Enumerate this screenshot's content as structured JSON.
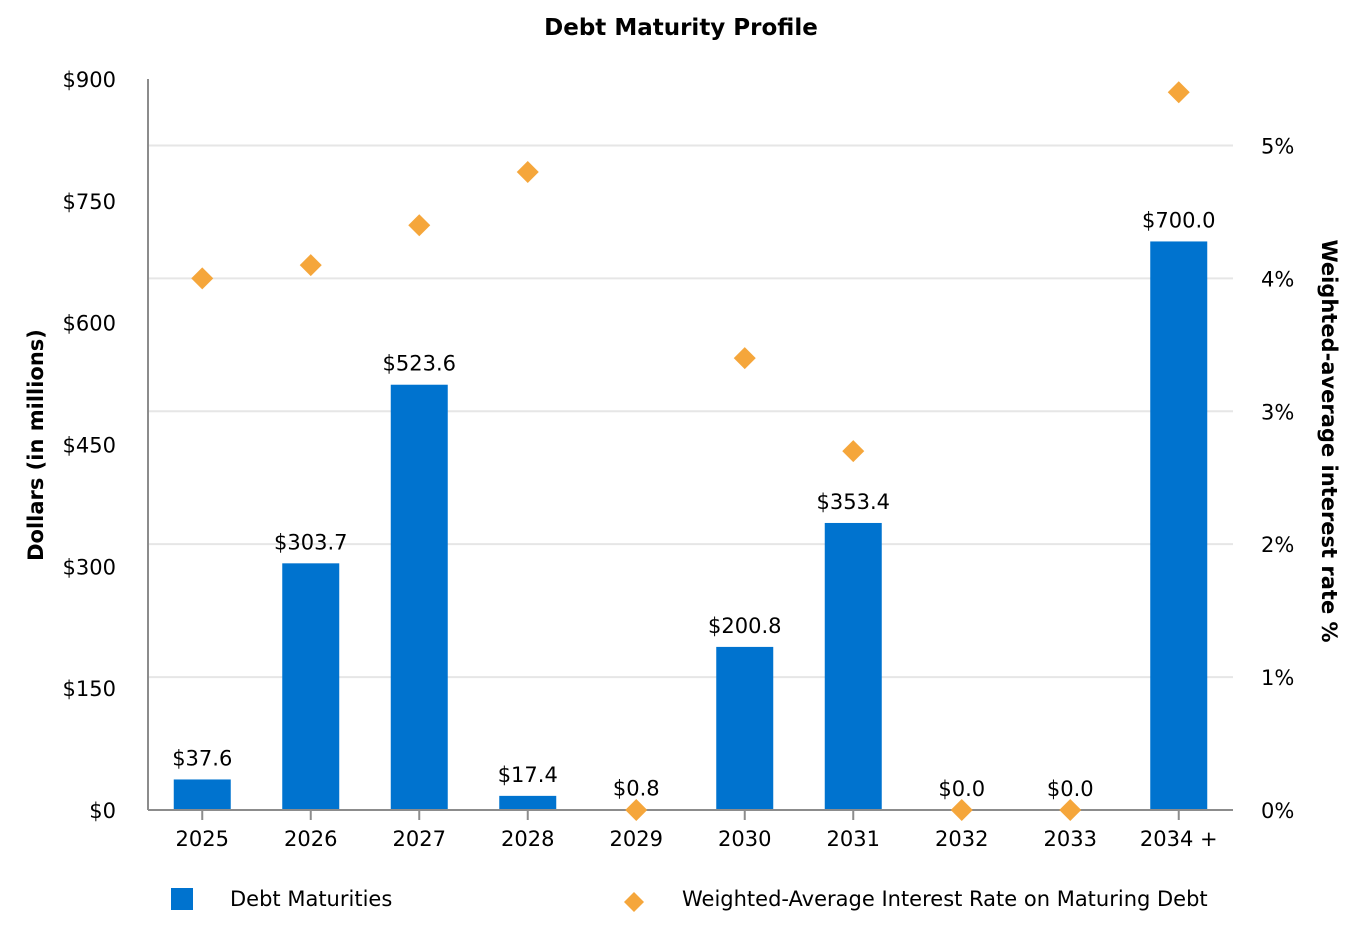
{
  "chart_data": {
    "type": "bar",
    "title": "Debt Maturity Profile",
    "categories": [
      "2025",
      "2026",
      "2027",
      "2028",
      "2029",
      "2030",
      "2031",
      "2032",
      "2033",
      "2034 +"
    ],
    "series": [
      {
        "name": "Debt Maturities",
        "type": "bar",
        "axis": "left",
        "color": "#0073cf",
        "values": [
          37.6,
          303.7,
          523.6,
          17.4,
          0.8,
          200.8,
          353.4,
          0.0,
          0.0,
          700.0
        ],
        "labels": [
          "$37.6",
          "$303.7",
          "$523.6",
          "$17.4",
          "$0.8",
          "$200.8",
          "$353.4",
          "$0.0",
          "$0.0",
          "$700.0"
        ]
      },
      {
        "name": "Weighted-Average Interest Rate on Maturing Debt",
        "type": "scatter",
        "marker": "diamond",
        "axis": "right",
        "color": "#f5a63b",
        "values": [
          4.0,
          4.1,
          4.4,
          4.8,
          0.0,
          3.4,
          2.7,
          0.0,
          0.0,
          5.4
        ]
      }
    ],
    "ylabel": "Dollars (in millions)",
    "ylim": [
      0,
      900
    ],
    "yticks": [
      0,
      150,
      300,
      450,
      600,
      750,
      900
    ],
    "ytick_labels": [
      "$0",
      "$150",
      "$300",
      "$450",
      "$600",
      "$750",
      "$900"
    ],
    "y2label": "Weighted-average interest rate %",
    "y2lim": [
      0,
      5.5
    ],
    "y2ticks": [
      0,
      1,
      2,
      3,
      4,
      5
    ],
    "y2tick_labels": [
      "0%",
      "1%",
      "2%",
      "3%",
      "4%",
      "5%"
    ],
    "grid": true,
    "legend_position": "bottom"
  }
}
